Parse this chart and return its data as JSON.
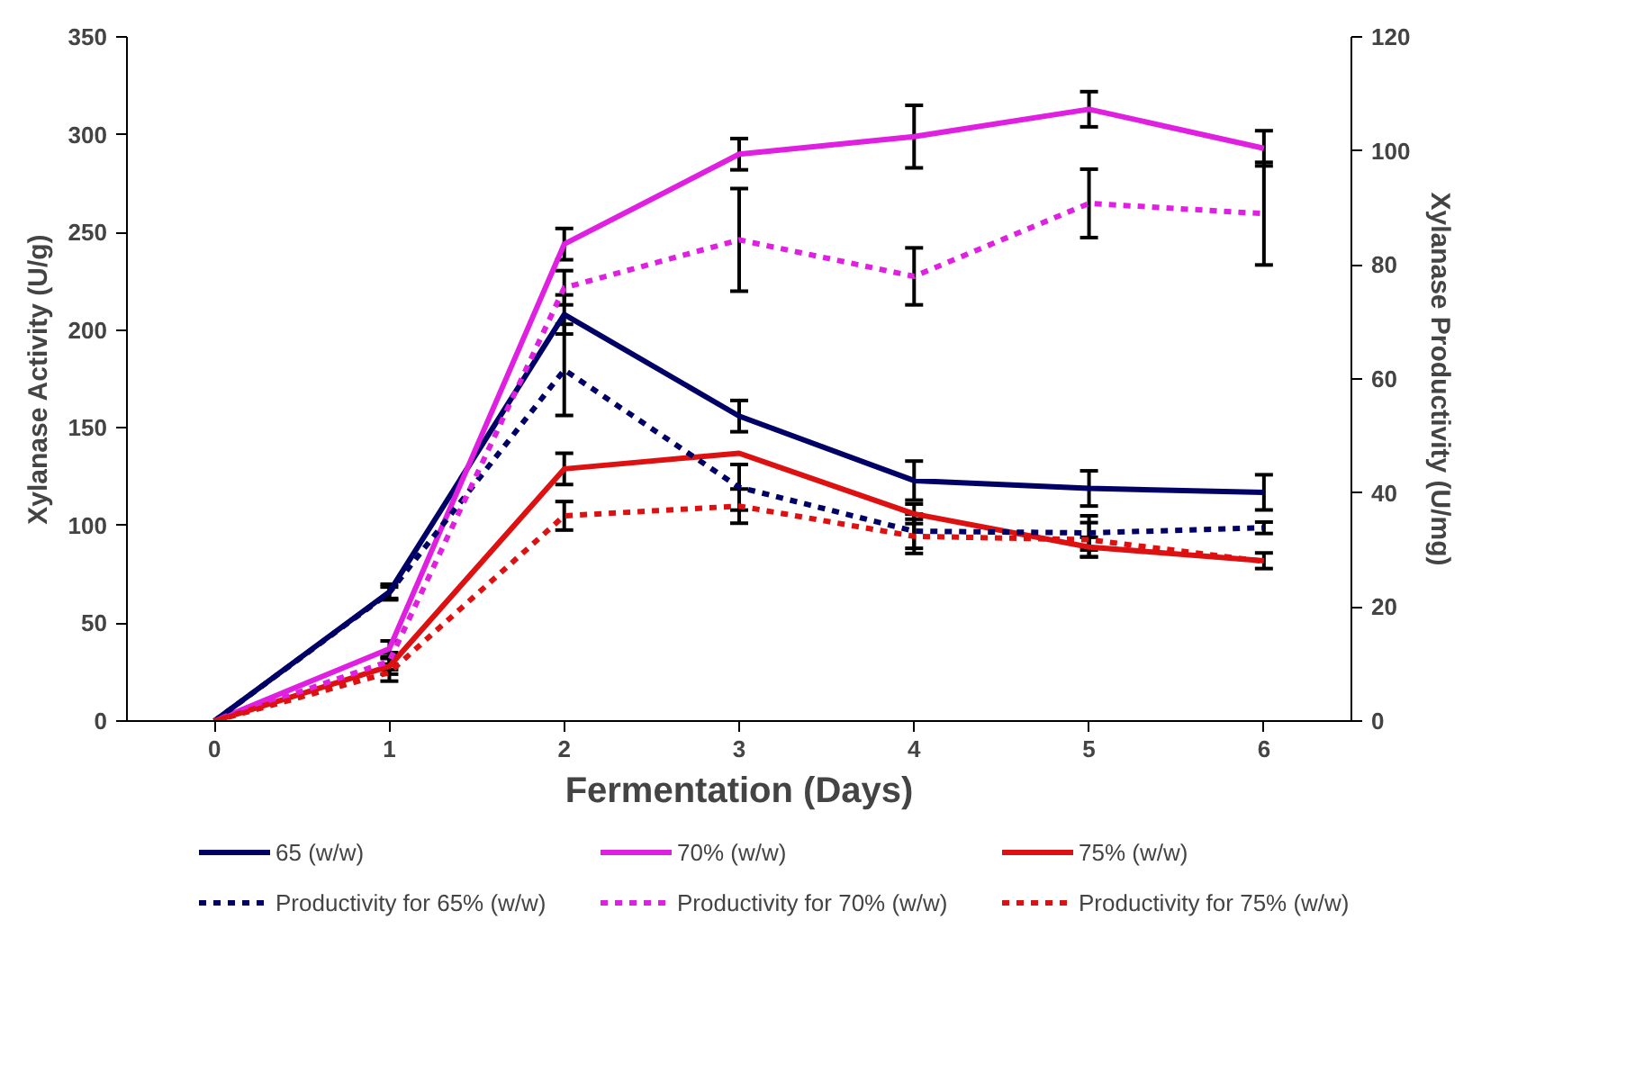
{
  "chart_data": {
    "type": "line",
    "xlabel": "Fermentation (Days)",
    "ylabel": "Xylanase Activity (U/g)",
    "y2label": "Xylanase Productivity (U/mg)",
    "categories": [
      "0",
      "1",
      "2",
      "3",
      "4",
      "5",
      "6"
    ],
    "ylim": [
      0,
      350
    ],
    "yticks": [
      0,
      50,
      100,
      150,
      200,
      250,
      300,
      350
    ],
    "y2lim": [
      0,
      120
    ],
    "y2ticks": [
      0,
      20,
      40,
      60,
      80,
      100,
      120
    ],
    "grid": false,
    "legend": "bottom",
    "marker": "none",
    "series": [
      {
        "name": "65 (w/w)",
        "color": "#000066",
        "line_style": "solid",
        "values": [
          0,
          66,
          208,
          156,
          123,
          119,
          117
        ],
        "errors": [
          null,
          4,
          10,
          8,
          10,
          9,
          9
        ]
      },
      {
        "name": "70% (w/w)",
        "color": "#e020e0",
        "line_style": "solid",
        "values": [
          0,
          37,
          244,
          290,
          299,
          313,
          293
        ],
        "errors": [
          null,
          4,
          8,
          8,
          16,
          9,
          9
        ]
      },
      {
        "name": "75% (w/w)",
        "color": "#dd1111",
        "line_style": "solid",
        "values": [
          0,
          28,
          129,
          137,
          106,
          89,
          82
        ],
        "errors": [
          null,
          4,
          8,
          null,
          5,
          5,
          4
        ]
      },
      {
        "name": "Productivity for 65% (w/w)",
        "color": "#000066",
        "line_style": "dashed",
        "axis": "y2",
        "values": [
          0,
          22.5,
          61.6,
          41,
          33.3,
          33.0,
          33.9
        ],
        "errors": [
          null,
          1,
          8,
          4,
          3,
          3,
          1
        ]
      },
      {
        "name": "Productivity for 70% (w/w)",
        "color": "#e020e0",
        "line_style": "dashed",
        "axis": "y2",
        "values": [
          0,
          10.5,
          76,
          84.4,
          78,
          90.8,
          89
        ],
        "errors": [
          null,
          1.5,
          3,
          9,
          5,
          6,
          9
        ]
      },
      {
        "name": "Productivity for 75% (w/w)",
        "color": "#dd1111",
        "line_style": "dashed",
        "axis": "y2",
        "values": [
          0,
          8.5,
          36,
          37.7,
          32.4,
          31.8,
          28
        ],
        "errors": [
          null,
          1.5,
          2.5,
          3,
          3,
          3,
          null
        ]
      }
    ]
  }
}
